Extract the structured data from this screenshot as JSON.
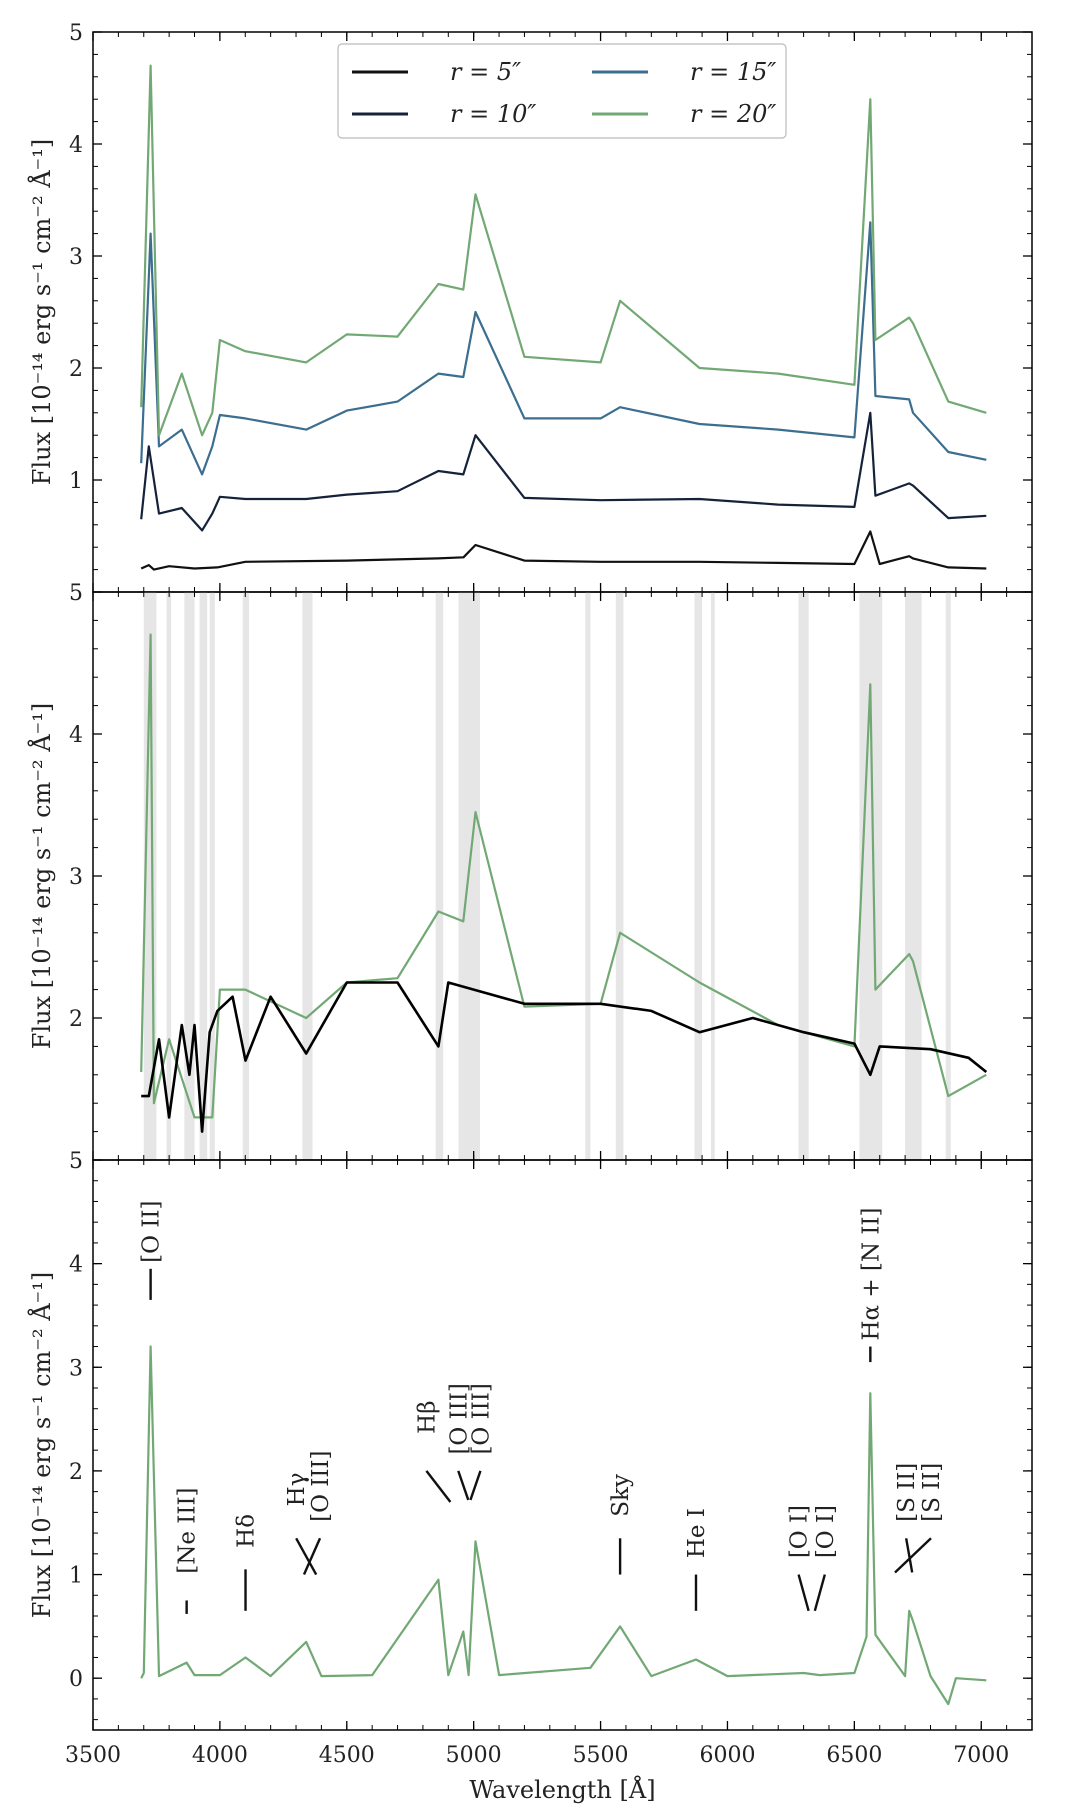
{
  "colors": {
    "r5": "#111111",
    "r10": "#15223a",
    "r15": "#3c6e8f",
    "r20": "#72a874",
    "fit": "#000000",
    "mask": "#e6e6e6",
    "lines": "#111111"
  },
  "x_axis": {
    "label": "Wavelength [Å]",
    "range": [
      3500,
      7200
    ],
    "ticks": [
      3500,
      4000,
      4500,
      5000,
      5500,
      6000,
      6500,
      7000
    ]
  },
  "chart_data": [
    {
      "type": "line",
      "panel": "top",
      "ylabel": "Flux [10⁻¹⁴ erg s⁻¹ cm⁻² Å⁻¹]",
      "ylim": [
        0,
        5
      ],
      "yticks": [
        1,
        2,
        3,
        4,
        5
      ],
      "legend": {
        "placement": "top-center",
        "entries": [
          {
            "label": "r = 5″",
            "color_key": "r5"
          },
          {
            "label": "r = 15″",
            "color_key": "r15"
          },
          {
            "label": "r = 10″",
            "color_key": "r10"
          },
          {
            "label": "r = 20″",
            "color_key": "r20"
          }
        ]
      },
      "series": [
        {
          "name": "r = 5″",
          "color_key": "r5",
          "x": [
            3690,
            3720,
            3740,
            3800,
            3900,
            3990,
            4100,
            4500,
            4860,
            4960,
            5007,
            5200,
            5500,
            5700,
            5890,
            6200,
            6500,
            6563,
            6600,
            6716,
            6731,
            6870,
            7020
          ],
          "y": [
            0.21,
            0.24,
            0.2,
            0.23,
            0.21,
            0.22,
            0.27,
            0.28,
            0.3,
            0.31,
            0.42,
            0.28,
            0.27,
            0.27,
            0.27,
            0.26,
            0.25,
            0.54,
            0.25,
            0.32,
            0.3,
            0.22,
            0.21
          ]
        },
        {
          "name": "r = 10″",
          "color_key": "r10",
          "x": [
            3690,
            3720,
            3760,
            3850,
            3930,
            3970,
            4000,
            4100,
            4340,
            4500,
            4700,
            4861,
            4959,
            5007,
            5200,
            5500,
            5890,
            6200,
            6500,
            6563,
            6583,
            6716,
            6731,
            6870,
            7020
          ],
          "y": [
            0.65,
            1.3,
            0.7,
            0.75,
            0.55,
            0.7,
            0.85,
            0.83,
            0.83,
            0.87,
            0.9,
            1.08,
            1.05,
            1.4,
            0.84,
            0.82,
            0.83,
            0.78,
            0.76,
            1.6,
            0.86,
            0.97,
            0.95,
            0.66,
            0.68
          ]
        },
        {
          "name": "r = 15″",
          "color_key": "r15",
          "x": [
            3690,
            3727,
            3760,
            3850,
            3930,
            3970,
            4000,
            4100,
            4340,
            4500,
            4700,
            4861,
            4959,
            5007,
            5200,
            5500,
            5577,
            5890,
            6200,
            6500,
            6563,
            6583,
            6716,
            6731,
            6870,
            7020
          ],
          "y": [
            1.15,
            3.2,
            1.3,
            1.45,
            1.05,
            1.3,
            1.58,
            1.55,
            1.45,
            1.62,
            1.7,
            1.95,
            1.92,
            2.5,
            1.55,
            1.55,
            1.65,
            1.5,
            1.45,
            1.38,
            3.3,
            1.75,
            1.72,
            1.6,
            1.25,
            1.18
          ]
        },
        {
          "name": "r = 20″",
          "color_key": "r20",
          "x": [
            3690,
            3727,
            3760,
            3850,
            3930,
            3970,
            4000,
            4100,
            4340,
            4500,
            4700,
            4861,
            4959,
            5007,
            5200,
            5500,
            5577,
            5890,
            6200,
            6500,
            6563,
            6583,
            6716,
            6731,
            6870,
            7020
          ],
          "y": [
            1.65,
            4.7,
            1.4,
            1.95,
            1.4,
            1.6,
            2.25,
            2.15,
            2.05,
            2.3,
            2.28,
            2.75,
            2.7,
            3.55,
            2.1,
            2.05,
            2.6,
            2.0,
            1.95,
            1.85,
            4.4,
            2.25,
            2.45,
            2.4,
            1.7,
            1.6
          ]
        }
      ]
    },
    {
      "type": "line",
      "panel": "middle",
      "ylabel": "Flux [10⁻¹⁴ erg s⁻¹ cm⁻² Å⁻¹]",
      "ylim": [
        1,
        5
      ],
      "yticks": [
        2,
        3,
        4,
        5
      ],
      "masked_regions": [
        [
          3700,
          3750
        ],
        [
          3790,
          3808
        ],
        [
          3860,
          3880
        ],
        [
          3880,
          3900
        ],
        [
          3920,
          3950
        ],
        [
          3960,
          3980
        ],
        [
          4090,
          4115
        ],
        [
          4325,
          4365
        ],
        [
          4850,
          4880
        ],
        [
          4940,
          5025
        ],
        [
          5440,
          5460
        ],
        [
          5560,
          5590
        ],
        [
          5870,
          5900
        ],
        [
          5935,
          5950
        ],
        [
          6280,
          6320
        ],
        [
          6520,
          6610
        ],
        [
          6700,
          6765
        ],
        [
          6860,
          6880
        ]
      ],
      "series": [
        {
          "name": "r = 20″",
          "color_key": "r20",
          "x": [
            3690,
            3727,
            3740,
            3800,
            3900,
            3970,
            4000,
            4100,
            4340,
            4500,
            4700,
            4861,
            4959,
            5007,
            5200,
            5500,
            5577,
            5890,
            6200,
            6500,
            6563,
            6583,
            6716,
            6731,
            6870,
            7020
          ],
          "y": [
            1.62,
            4.7,
            1.4,
            1.85,
            1.3,
            1.3,
            2.2,
            2.2,
            2.0,
            2.25,
            2.28,
            2.75,
            2.68,
            3.45,
            2.08,
            2.1,
            2.6,
            2.25,
            1.95,
            1.8,
            4.35,
            2.2,
            2.45,
            2.4,
            1.45,
            1.6
          ]
        },
        {
          "name": "",
          "color_key": "fit",
          "x": [
            3690,
            3720,
            3760,
            3800,
            3850,
            3880,
            3900,
            3930,
            3960,
            3990,
            4050,
            4101,
            4200,
            4340,
            4500,
            4700,
            4861,
            4900,
            5000,
            5200,
            5500,
            5700,
            5890,
            6100,
            6300,
            6500,
            6563,
            6600,
            6800,
            6950,
            7020
          ],
          "y": [
            1.45,
            1.45,
            1.85,
            1.3,
            1.95,
            1.6,
            1.95,
            1.2,
            1.9,
            2.05,
            2.15,
            1.7,
            2.15,
            1.75,
            2.25,
            2.25,
            1.8,
            2.25,
            2.2,
            2.1,
            2.1,
            2.05,
            1.9,
            2.0,
            1.9,
            1.82,
            1.6,
            1.8,
            1.78,
            1.72,
            1.62
          ]
        }
      ]
    },
    {
      "type": "line",
      "panel": "bottom",
      "ylabel": "Flux [10⁻¹⁴ erg s⁻¹ cm⁻² Å⁻¹]",
      "ylim": [
        -0.5,
        5
      ],
      "yticks": [
        0,
        1,
        2,
        3,
        4,
        5
      ],
      "series": [
        {
          "name": "",
          "color_key": "r20",
          "x": [
            3690,
            3700,
            3727,
            3760,
            3869,
            3900,
            4000,
            4101,
            4200,
            4340,
            4400,
            4600,
            4861,
            4900,
            4959,
            4980,
            5007,
            5100,
            5460,
            5577,
            5700,
            5876,
            6000,
            6300,
            6364,
            6500,
            6548,
            6563,
            6583,
            6700,
            6716,
            6731,
            6800,
            6870,
            6900,
            7020
          ],
          "y": [
            0.0,
            0.05,
            3.2,
            0.02,
            0.15,
            0.03,
            0.03,
            0.2,
            0.02,
            0.35,
            0.02,
            0.03,
            0.95,
            0.03,
            0.45,
            0.03,
            1.32,
            0.03,
            0.1,
            0.5,
            0.02,
            0.18,
            0.02,
            0.05,
            0.03,
            0.05,
            0.4,
            2.75,
            0.42,
            0.02,
            0.65,
            0.55,
            0.02,
            -0.25,
            0.0,
            -0.02
          ]
        }
      ],
      "line_labels": [
        {
          "label": "[O II]",
          "x": 3727
        },
        {
          "label": "[Ne III]",
          "x": 3869
        },
        {
          "label": "Hδ",
          "x": 4101
        },
        {
          "label": "Hγ",
          "x": 4340
        },
        {
          "label": "[O III]",
          "x": 4363
        },
        {
          "label": "Hβ",
          "x": 4861
        },
        {
          "label": "[O III]",
          "x": 4959
        },
        {
          "label": "[O III]",
          "x": 5007
        },
        {
          "label": "Sky",
          "x": 5577
        },
        {
          "label": "He I",
          "x": 5876
        },
        {
          "label": "[O I]",
          "x": 6300
        },
        {
          "label": "[O I]",
          "x": 6364
        },
        {
          "label": "Hα + [N II]",
          "x": 6563
        },
        {
          "label": "[S II]",
          "x": 6716
        },
        {
          "label": "[S II]",
          "x": 6731
        }
      ]
    }
  ]
}
